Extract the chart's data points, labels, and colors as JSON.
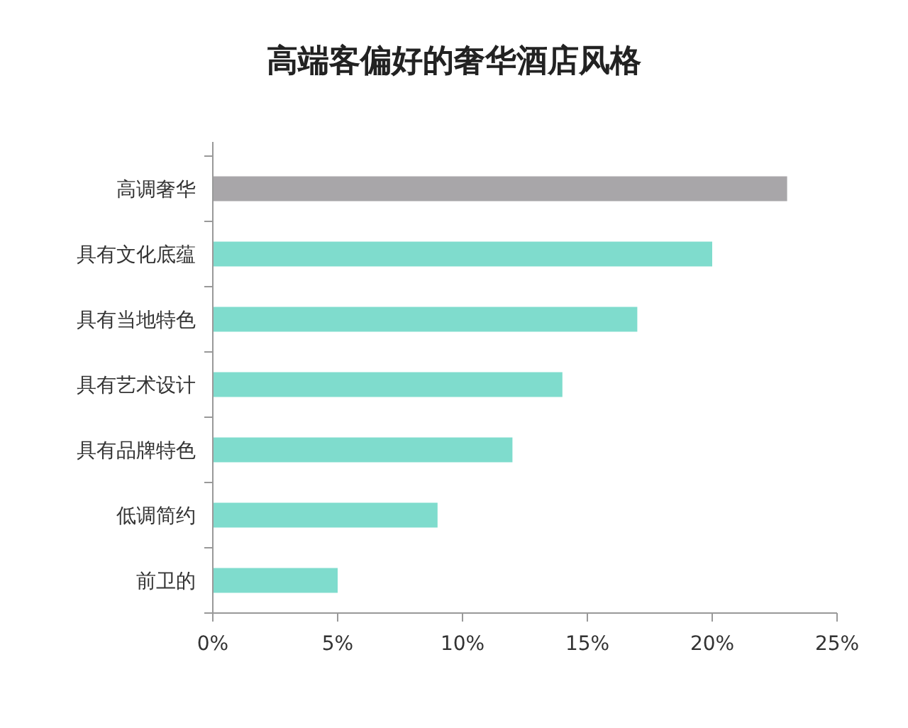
{
  "chart_data": {
    "type": "bar",
    "orientation": "horizontal",
    "title": "高端客偏好的奢华酒店风格",
    "categories": [
      "高调奢华",
      "具有文化底蕴",
      "具有当地特色",
      "具有艺术设计",
      "具有品牌特色",
      "低调简约",
      "前卫的"
    ],
    "values": [
      23,
      20,
      17,
      14,
      12,
      9,
      5
    ],
    "colors": [
      "#a8a6a9",
      "#7fdccd",
      "#7fdccd",
      "#7fdccd",
      "#7fdccd",
      "#7fdccd",
      "#7fdccd"
    ],
    "xlim": [
      0,
      25
    ],
    "xticks": [
      {
        "value": 0,
        "label": "0%"
      },
      {
        "value": 5,
        "label": "5%"
      },
      {
        "value": 10,
        "label": "10%"
      },
      {
        "value": 15,
        "label": "15%"
      },
      {
        "value": 20,
        "label": "20%"
      },
      {
        "value": 25,
        "label": "25%"
      }
    ]
  }
}
